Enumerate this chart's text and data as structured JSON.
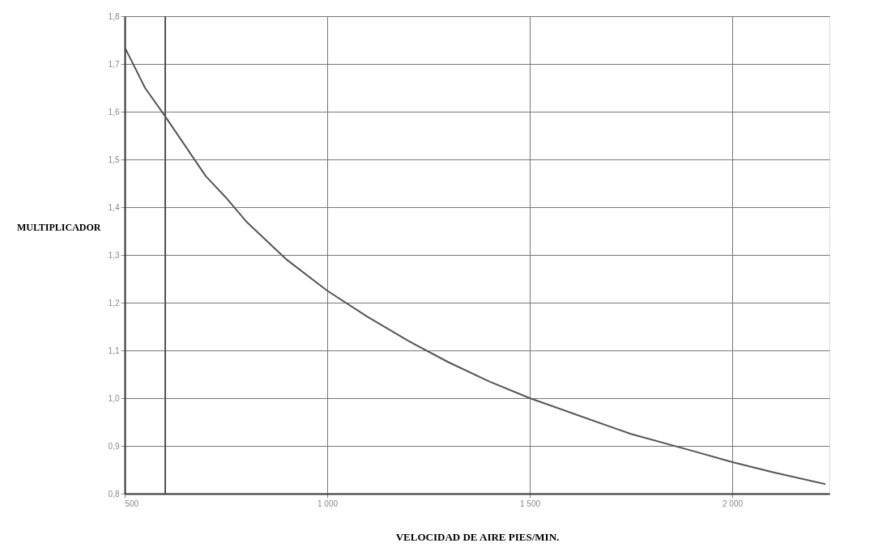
{
  "chart_data": {
    "type": "line",
    "xlabel": "VELOCIDAD DE AIRE PIES/MIN.",
    "ylabel": "MULTIPLICADOR",
    "x": [
      500,
      550,
      600,
      700,
      750,
      800,
      900,
      1000,
      1100,
      1200,
      1300,
      1400,
      1500,
      1600,
      1750,
      1900,
      2000,
      2100,
      2230
    ],
    "series": [
      {
        "color": "#555555",
        "values": [
          1.735,
          1.65,
          1.59,
          1.465,
          1.42,
          1.37,
          1.29,
          1.225,
          1.17,
          1.12,
          1.075,
          1.035,
          1.0,
          0.97,
          0.925,
          0.89,
          0.866,
          0.845,
          0.82
        ]
      }
    ],
    "xlim": [
      500,
      2240
    ],
    "ylim": [
      0.8,
      1.8
    ],
    "xticks": [
      500,
      {
        "value": 1000,
        "label": "1 000"
      },
      {
        "value": 1500,
        "label": "1 500"
      },
      {
        "value": 2000,
        "label": "2 000"
      }
    ],
    "yticks": [
      {
        "value": 0.8,
        "label": "0,8"
      },
      {
        "value": 0.9,
        "label": "0,9"
      },
      {
        "value": 1.0,
        "label": "1,0"
      },
      {
        "value": 1.1,
        "label": "1,1"
      },
      {
        "value": 1.2,
        "label": "1,2"
      },
      {
        "value": 1.3,
        "label": "1,3"
      },
      {
        "value": 1.4,
        "label": "1,4"
      },
      {
        "value": 1.5,
        "label": "1,5"
      },
      {
        "value": 1.6,
        "label": "1,6"
      },
      {
        "value": 1.7,
        "label": "1,7"
      },
      {
        "value": 1.8,
        "label": "1,8"
      }
    ],
    "ref_lines": [
      {
        "axis": "x",
        "value": 600,
        "color": "#555555"
      }
    ],
    "grid": true,
    "marker": "none",
    "line_style": "solid"
  }
}
